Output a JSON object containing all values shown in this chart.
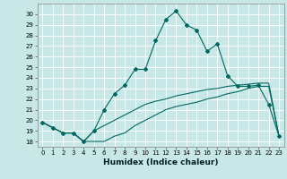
{
  "title": "",
  "xlabel": "Humidex (Indice chaleur)",
  "background_color": "#c8e8e8",
  "grid_color": "#ffffff",
  "line_color": "#006860",
  "xlim": [
    -0.5,
    23.5
  ],
  "ylim": [
    17.5,
    31.0
  ],
  "xticks": [
    0,
    1,
    2,
    3,
    4,
    5,
    6,
    7,
    8,
    9,
    10,
    11,
    12,
    13,
    14,
    15,
    16,
    17,
    18,
    19,
    20,
    21,
    22,
    23
  ],
  "yticks": [
    18,
    19,
    20,
    21,
    22,
    23,
    24,
    25,
    26,
    27,
    28,
    29,
    30
  ],
  "line1_x": [
    0,
    1,
    2,
    3,
    4,
    5,
    6,
    7,
    8,
    9,
    10,
    11,
    12,
    13,
    14,
    15,
    16,
    17,
    18,
    19,
    20,
    21,
    22,
    23
  ],
  "line1_y": [
    19.8,
    19.3,
    18.8,
    18.8,
    18.0,
    19.0,
    21.0,
    22.5,
    23.3,
    24.8,
    24.8,
    27.5,
    29.5,
    30.3,
    29.0,
    28.5,
    26.5,
    27.2,
    24.2,
    23.2,
    23.2,
    23.3,
    21.5,
    18.5
  ],
  "line2_x": [
    0,
    1,
    2,
    3,
    4,
    5,
    6,
    7,
    8,
    9,
    10,
    11,
    12,
    13,
    14,
    15,
    16,
    17,
    18,
    19,
    20,
    21,
    22,
    23
  ],
  "line2_y": [
    19.8,
    19.3,
    18.8,
    18.8,
    18.0,
    19.0,
    19.5,
    20.0,
    20.5,
    21.0,
    21.5,
    21.8,
    22.0,
    22.3,
    22.5,
    22.7,
    22.9,
    23.0,
    23.2,
    23.3,
    23.4,
    23.5,
    23.5,
    18.5
  ],
  "line3_x": [
    0,
    1,
    2,
    3,
    4,
    5,
    6,
    7,
    8,
    9,
    10,
    11,
    12,
    13,
    14,
    15,
    16,
    17,
    18,
    19,
    20,
    21,
    22,
    23
  ],
  "line3_y": [
    19.8,
    19.3,
    18.8,
    18.8,
    18.0,
    18.0,
    18.0,
    18.5,
    18.8,
    19.5,
    20.0,
    20.5,
    21.0,
    21.3,
    21.5,
    21.7,
    22.0,
    22.2,
    22.5,
    22.7,
    23.0,
    23.2,
    23.2,
    18.5
  ],
  "xlabel_fontsize": 6.5,
  "tick_fontsize": 5.0,
  "line_width": 0.8,
  "marker_size": 2.0
}
